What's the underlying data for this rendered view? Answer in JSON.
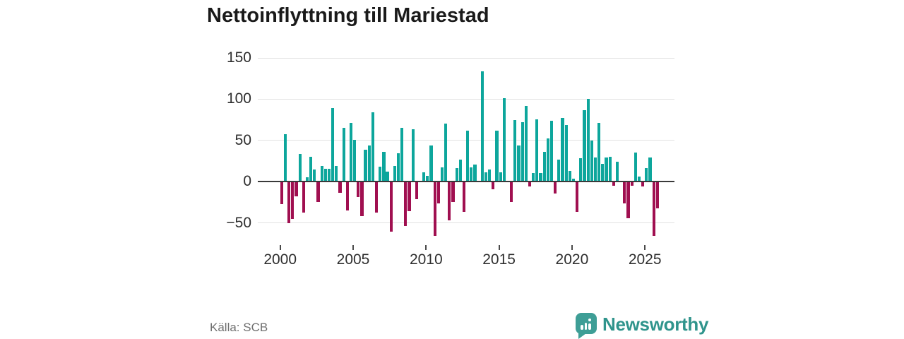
{
  "title": "Nettoinflyttning till Mariestad",
  "source": "Källa: SCB",
  "brand": {
    "name": "Newsworthy",
    "text_color": "#2f948c",
    "icon_color": "#3e9e96"
  },
  "chart_data": {
    "type": "bar",
    "title": "Nettoinflyttning till Mariestad",
    "x_encoding": "quarterly values from 2000 Q1 through 2025 Q4",
    "start_year": 2000,
    "frequency": "quarterly",
    "x_tick_labels": [
      "2000",
      "2005",
      "2010",
      "2015",
      "2020",
      "2025"
    ],
    "y_ticks": [
      150,
      100,
      50,
      0,
      -50
    ],
    "ylim": [
      -75,
      160
    ],
    "grid": true,
    "legend": "none",
    "colors": {
      "positive": "#0da69c",
      "negative": "#a00f50"
    },
    "values": [
      -28,
      57,
      -51,
      -46,
      -18,
      33,
      -38,
      5,
      30,
      14,
      -25,
      19,
      15,
      15,
      89,
      19,
      -14,
      65,
      -35,
      71,
      50,
      -19,
      -42,
      38,
      43,
      84,
      -38,
      18,
      36,
      12,
      -61,
      19,
      34,
      65,
      -54,
      -36,
      63,
      -22,
      0,
      11,
      7,
      43,
      -66,
      -27,
      17,
      70,
      -47,
      -25,
      16,
      26,
      -37,
      61,
      17,
      20,
      0,
      133,
      11,
      14,
      -10,
      61,
      11,
      101,
      0,
      -25,
      74,
      43,
      72,
      91,
      -6,
      10,
      75,
      10,
      36,
      52,
      73,
      -15,
      26,
      77,
      68,
      13,
      3,
      -37,
      28,
      86,
      100,
      49,
      29,
      71,
      21,
      29,
      30,
      -5,
      24,
      0,
      -27,
      -45,
      -5,
      35,
      6,
      -6,
      16,
      29,
      -66,
      -33
    ]
  }
}
